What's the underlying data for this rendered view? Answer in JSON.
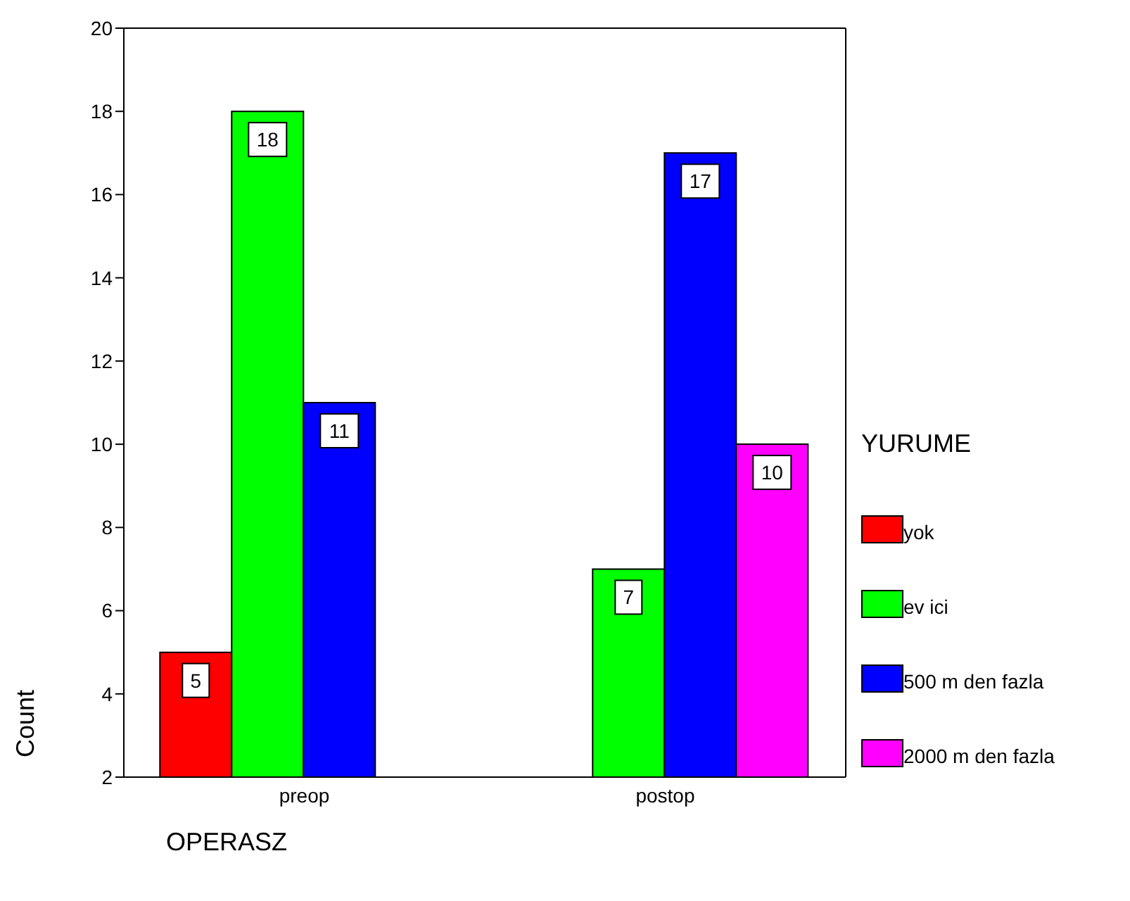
{
  "chart_data": {
    "type": "bar",
    "xlabel": "OPERASZ",
    "ylabel": "Count",
    "legend_title": "YURUME",
    "categories": [
      "preop",
      "postop"
    ],
    "series": [
      {
        "name": "yok",
        "color": "#ff0000",
        "values": [
          5,
          null
        ]
      },
      {
        "name": "ev ici",
        "color": "#00ff00",
        "values": [
          18,
          7
        ]
      },
      {
        "name": "500 m den fazla",
        "color": "#0000ff",
        "values": [
          11,
          17
        ]
      },
      {
        "name": "2000 m den fazla",
        "color": "#ff00ff",
        "values": [
          null,
          10
        ]
      }
    ],
    "ylim": [
      2,
      20
    ],
    "yticks": [
      2,
      4,
      6,
      8,
      10,
      12,
      14,
      16,
      18,
      20
    ],
    "data_labels": true,
    "legend": "right",
    "grid": false
  }
}
